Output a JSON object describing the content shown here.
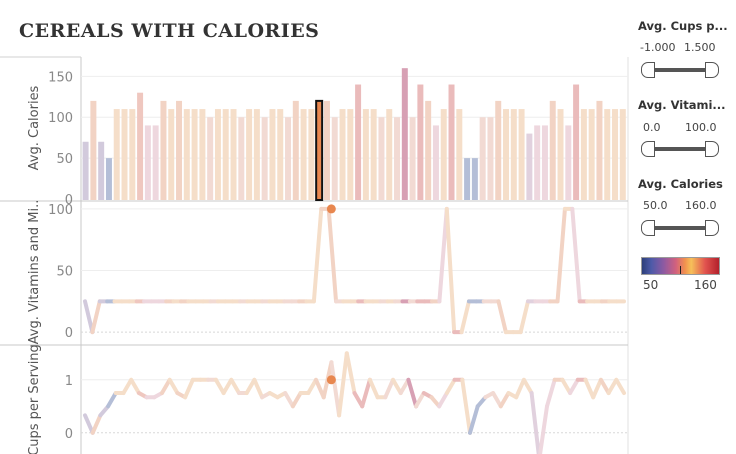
{
  "title": "CEREALS WITH CALORIES",
  "controls": [
    {
      "label": "Avg. Cups p...",
      "min": "-1.000",
      "max": "1.500"
    },
    {
      "label": "Avg. Vitami...",
      "min": "0.0",
      "max": "100.0"
    },
    {
      "label": "Avg. Calories",
      "min": "50.0",
      "max": "160.0"
    }
  ],
  "color_legend": {
    "min": "50",
    "max": "160",
    "marker_value": 110
  },
  "chart_data": [
    {
      "type": "bar",
      "ylabel": "Avg. Calories",
      "yticks": [
        0,
        50,
        100,
        150
      ],
      "ylim": [
        0,
        170
      ],
      "grid": true,
      "highlight_index": 30,
      "values": [
        70,
        120,
        70,
        50,
        110,
        110,
        110,
        130,
        90,
        90,
        120,
        110,
        120,
        110,
        110,
        110,
        100,
        110,
        110,
        110,
        100,
        110,
        110,
        100,
        110,
        110,
        100,
        120,
        110,
        110,
        120,
        120,
        100,
        110,
        110,
        140,
        110,
        110,
        100,
        110,
        100,
        160,
        100,
        140,
        120,
        90,
        110,
        140,
        110,
        50,
        50,
        100,
        100,
        120,
        110,
        110,
        110,
        80,
        90,
        90,
        120,
        110,
        90,
        140,
        110,
        110,
        120,
        110,
        110,
        110
      ]
    },
    {
      "type": "line",
      "ylabel": "Avg. Vitamins and Mi..",
      "yticks": [
        0,
        50,
        100
      ],
      "ylim": [
        -8,
        104
      ],
      "highlight_index": 30,
      "values": [
        25,
        0,
        25,
        25,
        25,
        25,
        25,
        25,
        25,
        25,
        25,
        25,
        25,
        25,
        25,
        25,
        25,
        25,
        25,
        25,
        25,
        25,
        25,
        25,
        25,
        25,
        25,
        25,
        25,
        25,
        25,
        25,
        100,
        100,
        25,
        25,
        25,
        25,
        25,
        25,
        25,
        25,
        25,
        25,
        25,
        25,
        25,
        25,
        25,
        100,
        0,
        0,
        25,
        25,
        25,
        25,
        25,
        0,
        0,
        0,
        25,
        25,
        25,
        25,
        25,
        100,
        100,
        25,
        25,
        25,
        25,
        25,
        25,
        25
      ]
    },
    {
      "type": "line",
      "ylabel": "Cups per Serving",
      "yticks": [
        0,
        1
      ],
      "ylim": [
        -0.4,
        1.6
      ],
      "highlight_index": 30,
      "values": [
        0.33,
        0.0,
        0.33,
        0.5,
        0.75,
        0.75,
        1.0,
        0.75,
        0.67,
        0.67,
        0.75,
        1.0,
        0.75,
        0.67,
        1.0,
        1.0,
        1.0,
        1.0,
        0.75,
        1.0,
        0.75,
        0.75,
        1.0,
        0.67,
        0.75,
        0.67,
        0.75,
        0.5,
        0.75,
        0.75,
        1.0,
        0.67,
        1.33,
        0.33,
        1.5,
        0.75,
        0.5,
        1.0,
        0.67,
        0.67,
        1.0,
        0.75,
        1.0,
        0.5,
        0.75,
        0.67,
        0.5,
        0.75,
        1.0,
        1.0,
        0.0,
        0.5,
        0.67,
        0.75,
        0.5,
        0.75,
        0.67,
        1.0,
        0.75,
        -0.5,
        0.5,
        1.0,
        1.0,
        0.75,
        1.0,
        1.0,
        0.67,
        1.0,
        0.75,
        1.0,
        0.75
      ]
    }
  ]
}
